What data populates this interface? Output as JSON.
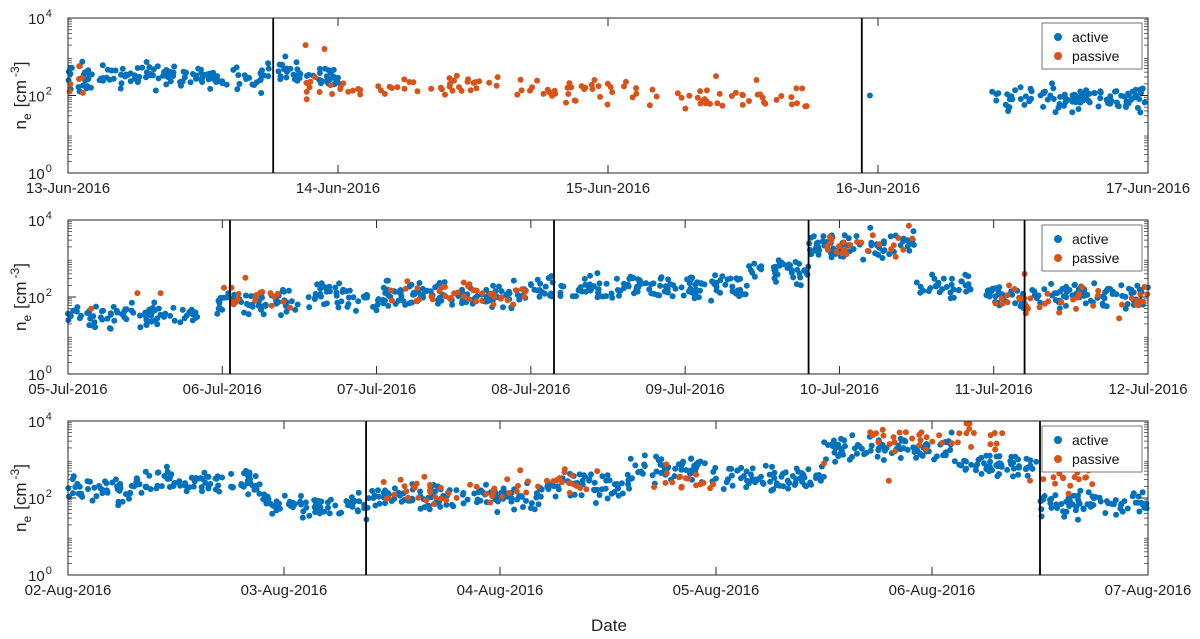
{
  "chart_data": [
    {
      "type": "scatter",
      "panel": "top",
      "xlabel": "",
      "ylabel_main": "n",
      "ylabel_sub": "e",
      "ylabel_unit": "[cm",
      "ylabel_exp": "-3",
      "ylabel_close": "]",
      "yscale": "log",
      "ylim": [
        1,
        10000
      ],
      "y_ticks": [
        {
          "value": 1,
          "base": "10",
          "exp": "0"
        },
        {
          "value": 100,
          "base": "10",
          "exp": "2"
        },
        {
          "value": 10000,
          "base": "10",
          "exp": "4"
        }
      ],
      "x_unit": "days since 13-Jun-2016 00:00",
      "xlim": [
        0,
        4
      ],
      "x_ticks": [
        {
          "value": 0,
          "label": "13-Jun-2016"
        },
        {
          "value": 1,
          "label": "14-Jun-2016"
        },
        {
          "value": 2,
          "label": "15-Jun-2016"
        },
        {
          "value": 3,
          "label": "16-Jun-2016"
        },
        {
          "value": 4,
          "label": "17-Jun-2016"
        }
      ],
      "vlines": [
        0.76,
        2.94
      ],
      "legend": {
        "position": "top-right",
        "entries": [
          "active",
          "passive"
        ]
      },
      "series": [
        {
          "name": "active",
          "color": "#0072BD",
          "segments": [
            [
              0.0,
              0.72,
              2.5
            ],
            [
              0.72,
              0.86,
              2.65
            ],
            [
              0.86,
              1.0,
              2.5
            ],
            [
              3.42,
              4.0,
              1.9
            ]
          ],
          "isolated": [
            [
              2.97,
              2.0
            ]
          ]
        },
        {
          "name": "passive",
          "color": "#D95319",
          "segments": [
            [
              0.0,
              0.08,
              2.35
            ],
            [
              0.88,
              1.2,
              2.15
            ],
            [
              1.2,
              1.6,
              2.3
            ],
            [
              1.66,
              2.2,
              2.1
            ],
            [
              2.25,
              2.75,
              1.9
            ]
          ],
          "isolated": [
            [
              0.88,
              3.3
            ],
            [
              0.95,
              3.2
            ],
            [
              1.95,
              2.4
            ],
            [
              2.4,
              2.5
            ],
            [
              2.55,
              2.4
            ],
            [
              2.7,
              1.8
            ]
          ]
        }
      ]
    },
    {
      "type": "scatter",
      "panel": "middle",
      "xlabel": "",
      "ylabel_main": "n",
      "ylabel_sub": "e",
      "ylabel_unit": "[cm",
      "ylabel_exp": "-3",
      "ylabel_close": "]",
      "yscale": "log",
      "ylim": [
        1,
        10000
      ],
      "y_ticks": [
        {
          "value": 1,
          "base": "10",
          "exp": "0"
        },
        {
          "value": 100,
          "base": "10",
          "exp": "2"
        },
        {
          "value": 10000,
          "base": "10",
          "exp": "4"
        }
      ],
      "x_unit": "days since 05-Jul-2016 00:00",
      "xlim": [
        0,
        7
      ],
      "x_ticks": [
        {
          "value": 0,
          "label": "05-Jul-2016"
        },
        {
          "value": 1,
          "label": "06-Jul-2016"
        },
        {
          "value": 2,
          "label": "07-Jul-2016"
        },
        {
          "value": 3,
          "label": "08-Jul-2016"
        },
        {
          "value": 4,
          "label": "09-Jul-2016"
        },
        {
          "value": 5,
          "label": "10-Jul-2016"
        },
        {
          "value": 6,
          "label": "11-Jul-2016"
        },
        {
          "value": 7,
          "label": "12-Jul-2016"
        }
      ],
      "vlines": [
        1.05,
        3.15,
        4.8,
        6.2
      ],
      "legend": {
        "position": "top-right",
        "entries": [
          "active",
          "passive"
        ]
      },
      "series": [
        {
          "name": "active",
          "color": "#0072BD",
          "segments": [
            [
              0.0,
              0.85,
              1.55
            ],
            [
              0.95,
              1.5,
              1.9
            ],
            [
              1.55,
              3.0,
              2.05
            ],
            [
              3.0,
              4.4,
              2.25
            ],
            [
              4.4,
              4.8,
              2.7
            ],
            [
              4.8,
              5.5,
              3.35
            ],
            [
              5.5,
              5.85,
              2.3
            ],
            [
              5.95,
              7.0,
              2.05
            ]
          ],
          "isolated": [
            [
              4.95,
              3.6
            ],
            [
              5.2,
              3.8
            ]
          ]
        },
        {
          "name": "passive",
          "color": "#D95319",
          "segments": [
            [
              1.0,
              1.45,
              2.0
            ],
            [
              2.0,
              3.0,
              2.1
            ],
            [
              4.9,
              5.5,
              3.35
            ],
            [
              6.0,
              7.0,
              1.9
            ]
          ],
          "isolated": [
            [
              0.15,
              1.7
            ],
            [
              0.45,
              2.1
            ],
            [
              0.6,
              2.1
            ],
            [
              1.15,
              2.5
            ],
            [
              5.45,
              3.85
            ],
            [
              6.2,
              2.6
            ],
            [
              6.1,
              2.3
            ]
          ]
        }
      ]
    },
    {
      "type": "scatter",
      "panel": "bottom",
      "xlabel": "Date",
      "ylabel_main": "n",
      "ylabel_sub": "e",
      "ylabel_unit": "[cm",
      "ylabel_exp": "-3",
      "ylabel_close": "]",
      "yscale": "log",
      "ylim": [
        1,
        10000
      ],
      "y_ticks": [
        {
          "value": 1,
          "base": "10",
          "exp": "0"
        },
        {
          "value": 100,
          "base": "10",
          "exp": "2"
        },
        {
          "value": 10000,
          "base": "10",
          "exp": "4"
        }
      ],
      "x_unit": "days since 02-Aug-2016 00:00",
      "xlim": [
        0,
        5
      ],
      "x_ticks": [
        {
          "value": 0,
          "label": "02-Aug-2016"
        },
        {
          "value": 1,
          "label": "03-Aug-2016"
        },
        {
          "value": 2,
          "label": "04-Aug-2016"
        },
        {
          "value": 3,
          "label": "05-Aug-2016"
        },
        {
          "value": 4,
          "label": "06-Aug-2016"
        },
        {
          "value": 5,
          "label": "07-Aug-2016"
        }
      ],
      "vlines": [
        1.38,
        4.5
      ],
      "legend": {
        "position": "top-right",
        "entries": [
          "active",
          "passive"
        ]
      },
      "series": [
        {
          "name": "active",
          "color": "#0072BD",
          "segments": [
            [
              0.0,
              0.3,
              2.15
            ],
            [
              0.3,
              0.9,
              2.4
            ],
            [
              0.9,
              1.4,
              1.85
            ],
            [
              1.4,
              2.2,
              2.0
            ],
            [
              2.2,
              2.6,
              2.3
            ],
            [
              2.6,
              3.0,
              2.75
            ],
            [
              3.0,
              3.5,
              2.5
            ],
            [
              3.5,
              4.1,
              3.3
            ],
            [
              4.1,
              4.5,
              2.85
            ],
            [
              4.5,
              5.0,
              1.85
            ]
          ],
          "isolated": []
        },
        {
          "name": "passive",
          "color": "#D95319",
          "segments": [
            [
              1.45,
              2.0,
              2.15
            ],
            [
              2.0,
              2.4,
              2.35
            ],
            [
              2.7,
              3.0,
              2.5
            ],
            [
              3.7,
              4.1,
              3.5
            ],
            [
              4.1,
              4.35,
              3.6
            ],
            [
              4.45,
              4.75,
              2.5
            ]
          ],
          "isolated": [
            [
              1.65,
              2.55
            ],
            [
              2.45,
              2.7
            ],
            [
              3.5,
              2.9
            ],
            [
              3.8,
              2.45
            ],
            [
              3.85,
              3.7
            ],
            [
              2.3,
              2.75
            ]
          ]
        }
      ]
    }
  ]
}
